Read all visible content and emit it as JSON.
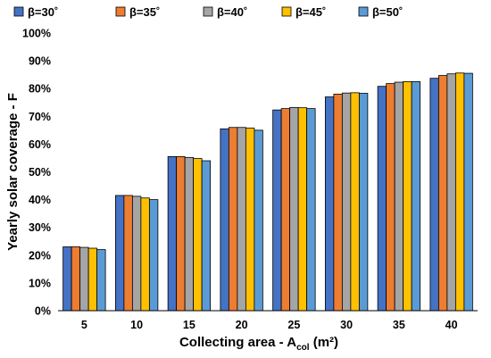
{
  "chart_data": {
    "type": "bar",
    "categories": [
      "5",
      "10",
      "15",
      "20",
      "25",
      "30",
      "35",
      "40"
    ],
    "series": [
      {
        "name": "β=30˚",
        "color": "#4472C4",
        "values": [
          23.0,
          41.5,
          55.5,
          65.5,
          72.3,
          77.0,
          80.8,
          83.7
        ]
      },
      {
        "name": "β=35˚",
        "color": "#ED7D31",
        "values": [
          23.0,
          41.5,
          55.5,
          66.0,
          72.8,
          78.0,
          81.8,
          84.7
        ]
      },
      {
        "name": "β=40˚",
        "color": "#A5A5A5",
        "values": [
          22.8,
          41.2,
          55.2,
          66.0,
          73.2,
          78.4,
          82.3,
          85.3
        ]
      },
      {
        "name": "β=45˚",
        "color": "#FFC000",
        "values": [
          22.5,
          40.6,
          54.8,
          65.8,
          73.1,
          78.5,
          82.5,
          85.6
        ]
      },
      {
        "name": "β=50˚",
        "color": "#5B9BD5",
        "values": [
          22.0,
          40.0,
          54.0,
          65.0,
          72.8,
          78.3,
          82.5,
          85.5
        ]
      }
    ],
    "y_ticks": [
      "0%",
      "10%",
      "20%",
      "30%",
      "40%",
      "50%",
      "60%",
      "70%",
      "80%",
      "90%",
      "100%"
    ],
    "ylim": [
      0,
      100
    ],
    "ylabel": "Yearly solar coverage - F",
    "xlabel": {
      "prefix": "Collecting area - A",
      "subscript": "col",
      "suffix": " (m²)"
    },
    "legend_position": "top",
    "grid": false
  }
}
